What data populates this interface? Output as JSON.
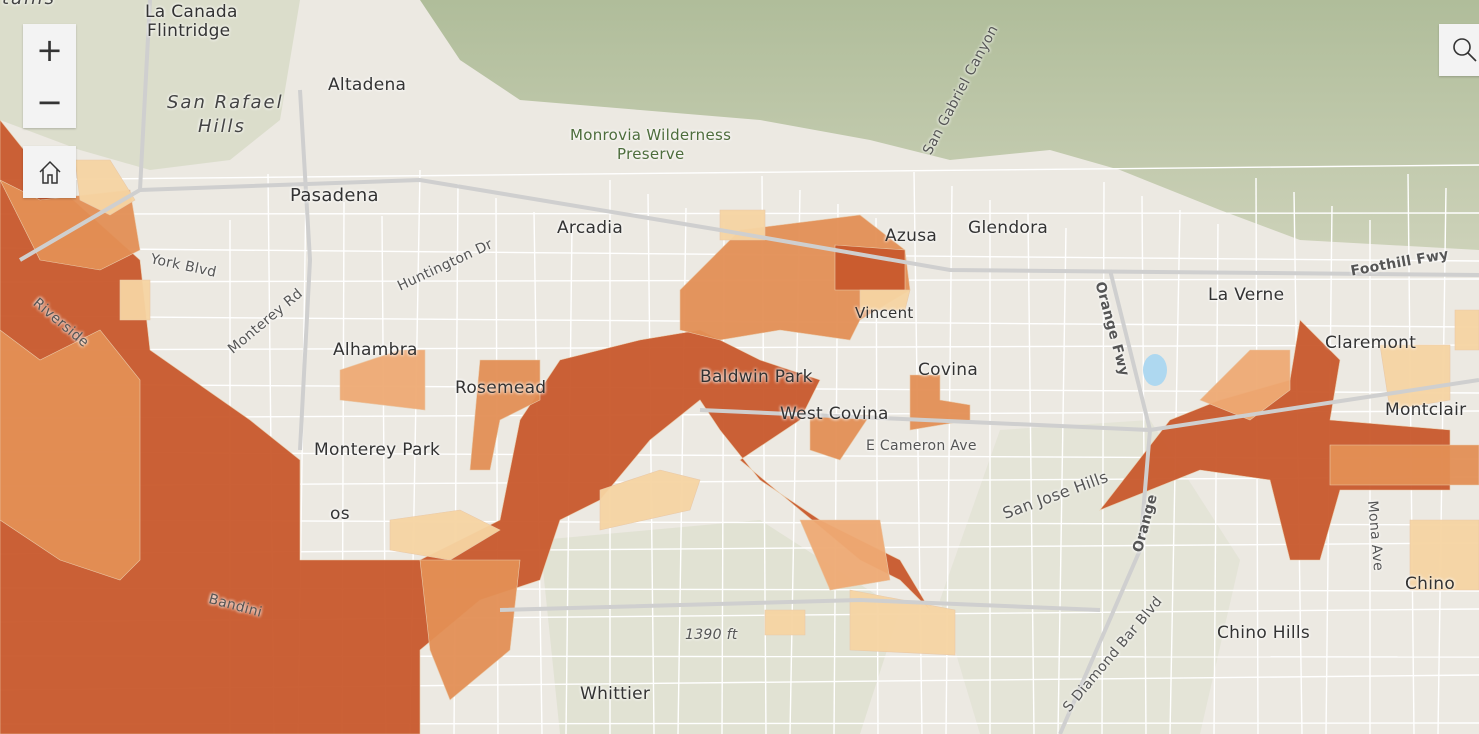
{
  "controls": {
    "zoom_in": "+",
    "zoom_out": "−",
    "home_icon": "home-icon",
    "search_icon": "search-icon"
  },
  "legend_colors": {
    "high": "#c8592c",
    "mid_high": "#e38f55",
    "mid": "#eeaa74",
    "low": "#f5d4a2"
  },
  "labels": {
    "mountains": "tains",
    "la_canada": "La Canada",
    "flintridge": "Flintridge",
    "san_rafael": "San Rafael",
    "hills": "Hills",
    "altadena": "Altadena",
    "pasadena": "Pasadena",
    "monrovia": "Monrovia Wilderness",
    "preserve": "Preserve",
    "san_gabriel_canyon": "San Gabriel Canyon",
    "arcadia": "Arcadia",
    "azusa": "Azusa",
    "glendora": "Glendora",
    "huntington": "Huntington Dr",
    "york": "York Blvd",
    "monterey_rd": "Monterey Rd",
    "riverside": "Riverside",
    "alhambra": "Alhambra",
    "rosemead": "Rosemead",
    "monterey_park": "Monterey Park",
    "vincent": "Vincent",
    "baldwin_park": "Baldwin Park",
    "covina": "Covina",
    "west_covina": "West Covina",
    "cameron": "E Cameron Ave",
    "san_jose_hills": "San Jose Hills",
    "orange_fwy": "Orange Fwy",
    "foothill_fwy": "Foothill Fwy",
    "la_verne": "La Verne",
    "claremont": "Claremont",
    "montclair": "Montclair",
    "chino_hills": "Chino Hills",
    "chino": "Chino",
    "elevation": "1390 ft",
    "whittier": "Whittier",
    "diamond_bar": "S Diamond Bar Blvd",
    "orange": "Orange",
    "mona": "Mona Ave",
    "bandini": "Bandini",
    "los": "os"
  }
}
